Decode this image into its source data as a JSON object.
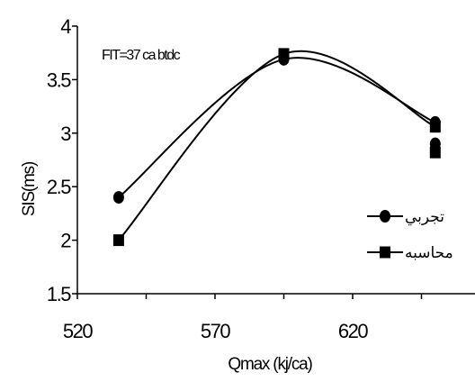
{
  "chart_data": {
    "type": "line",
    "annotation": "FIT=37 ca btdc",
    "xlabel": "Qmax (kj/ca)",
    "ylabel": "SIS(ms)",
    "xlim": [
      520,
      670
    ],
    "ylim": [
      1.5,
      4
    ],
    "xticks": [
      "520",
      "570",
      "620"
    ],
    "yticks": [
      "1.5",
      "2",
      "2.5",
      "3",
      "3.5",
      "4"
    ],
    "legend_position": "right",
    "smoothed": true,
    "series": [
      {
        "name": "تجربي",
        "marker": "circle",
        "color": "#000000",
        "points": [
          {
            "x": 535,
            "y": 2.4
          },
          {
            "x": 595,
            "y": 3.69
          },
          {
            "x": 650,
            "y": 3.1
          },
          {
            "x": 650,
            "y": 2.9
          }
        ]
      },
      {
        "name": "محاسبه",
        "marker": "square",
        "color": "#000000",
        "points": [
          {
            "x": 535,
            "y": 2.0
          },
          {
            "x": 595,
            "y": 3.74
          },
          {
            "x": 650,
            "y": 3.06
          },
          {
            "x": 650,
            "y": 2.82
          }
        ]
      }
    ]
  }
}
